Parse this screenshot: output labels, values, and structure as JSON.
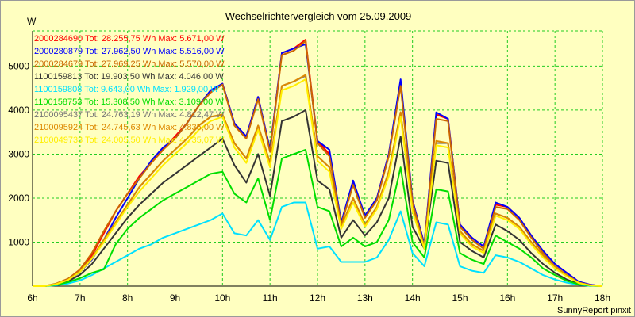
{
  "chart_data": {
    "type": "line",
    "title": "Wechselrichtervergleich vom 25.09.2009",
    "ylabel": "W",
    "footer": "SunnyReport pinxit",
    "grid": true,
    "legend_position": "top-left",
    "xlim": [
      6,
      18
    ],
    "ylim": [
      0,
      5800
    ],
    "x_ticks": [
      {
        "v": 6,
        "label": "6h"
      },
      {
        "v": 7,
        "label": "7h"
      },
      {
        "v": 8,
        "label": "8h"
      },
      {
        "v": 9,
        "label": "9h"
      },
      {
        "v": 10,
        "label": "10h"
      },
      {
        "v": 11,
        "label": "11h"
      },
      {
        "v": 12,
        "label": "12h"
      },
      {
        "v": 13,
        "label": "13h"
      },
      {
        "v": 14,
        "label": "14h"
      },
      {
        "v": 15,
        "label": "15h"
      },
      {
        "v": 16,
        "label": "16h"
      },
      {
        "v": 17,
        "label": "17h"
      },
      {
        "v": 18,
        "label": "18h"
      }
    ],
    "y_ticks": [
      {
        "v": 1000,
        "label": "1000"
      },
      {
        "v": 2000,
        "label": "2000"
      },
      {
        "v": 3000,
        "label": "3000"
      },
      {
        "v": 4000,
        "label": "4000"
      },
      {
        "v": 5000,
        "label": "5000"
      }
    ],
    "x": [
      6,
      6.25,
      6.5,
      6.75,
      7,
      7.25,
      7.5,
      7.75,
      8,
      8.25,
      8.5,
      8.75,
      9,
      9.25,
      9.5,
      9.75,
      10,
      10.25,
      10.5,
      10.75,
      11,
      11.25,
      11.5,
      11.75,
      12,
      12.25,
      12.5,
      12.75,
      13,
      13.25,
      13.5,
      13.75,
      14,
      14.25,
      14.5,
      14.75,
      15,
      15.25,
      15.5,
      15.75,
      16,
      16.25,
      16.5,
      16.75,
      17,
      17.25,
      17.5,
      17.75,
      18
    ],
    "series": [
      {
        "name": "2000284690",
        "legend": "2000284690 Tot: 28.255,75 Wh Max: 5.671,00 W",
        "color": "#ff0000",
        "values": [
          0,
          0,
          50,
          150,
          350,
          700,
          1200,
          1700,
          2100,
          2500,
          2800,
          3100,
          3400,
          3700,
          4100,
          4400,
          4600,
          3700,
          3400,
          4300,
          3100,
          5300,
          5400,
          5600,
          3300,
          3000,
          1450,
          2350,
          1600,
          2000,
          3000,
          4600,
          1950,
          950,
          3900,
          3800,
          1400,
          1100,
          900,
          1850,
          1800,
          1550,
          1150,
          800,
          500,
          300,
          100,
          30,
          0
        ]
      },
      {
        "name": "2000280879",
        "legend": "2000280879 Tot: 27.962,50 Wh Max: 5.516,00 W",
        "color": "#0000ff",
        "values": [
          0,
          0,
          40,
          130,
          320,
          600,
          1050,
          1550,
          2000,
          2450,
          2850,
          3150,
          3350,
          3700,
          4100,
          4450,
          4600,
          3700,
          3400,
          4300,
          3100,
          5300,
          5400,
          5500,
          3300,
          3100,
          1450,
          2400,
          1600,
          2000,
          3000,
          4700,
          1950,
          950,
          3950,
          3800,
          1400,
          1100,
          900,
          1900,
          1800,
          1550,
          1150,
          800,
          500,
          300,
          100,
          30,
          0
        ]
      },
      {
        "name": "2000284679",
        "legend": "2000284679 Tot: 27.969,25 Wh Max: 5.570,00 W",
        "color": "#cc6600",
        "values": [
          0,
          0,
          60,
          170,
          380,
          750,
          1250,
          1700,
          2100,
          2450,
          2800,
          3100,
          3350,
          3700,
          4100,
          4400,
          4580,
          3650,
          3350,
          4250,
          3050,
          5250,
          5350,
          5570,
          3250,
          2950,
          1400,
          2300,
          1550,
          1950,
          2950,
          4550,
          1900,
          900,
          3800,
          3750,
          1350,
          1050,
          850,
          1800,
          1750,
          1500,
          1100,
          750,
          450,
          250,
          80,
          20,
          0
        ]
      },
      {
        "name": "1100159813",
        "legend": "1100159813 Tot: 19.903,50 Wh Max: 4.046,00 W",
        "color": "#333333",
        "values": [
          0,
          0,
          40,
          110,
          260,
          500,
          850,
          1200,
          1550,
          1850,
          2100,
          2350,
          2550,
          2750,
          2950,
          3150,
          3350,
          2750,
          2350,
          3000,
          2050,
          3750,
          3850,
          4000,
          2400,
          2200,
          1100,
          1500,
          1150,
          1450,
          2000,
          3400,
          1350,
          850,
          2850,
          2800,
          1000,
          800,
          650,
          1400,
          1250,
          1050,
          750,
          500,
          300,
          150,
          50,
          10,
          0
        ]
      },
      {
        "name": "1100159808",
        "legend": "1100159808 Tot: 9.643,00 Wh Max: 1.929,00 W",
        "color": "#00e0ff",
        "values": [
          0,
          0,
          20,
          60,
          130,
          250,
          400,
          550,
          700,
          850,
          950,
          1100,
          1200,
          1300,
          1400,
          1500,
          1650,
          1200,
          1150,
          1500,
          1050,
          1800,
          1900,
          1900,
          850,
          900,
          550,
          550,
          550,
          650,
          1050,
          1700,
          750,
          450,
          1450,
          1400,
          450,
          350,
          300,
          700,
          650,
          550,
          400,
          250,
          150,
          80,
          30,
          5,
          0
        ]
      },
      {
        "name": "1100158753",
        "legend": "1100158753 Tot: 15.308,50 Wh Max: 3.109,00 W",
        "color": "#00dd00",
        "values": [
          0,
          0,
          30,
          90,
          180,
          300,
          380,
          950,
          1300,
          1550,
          1750,
          1950,
          2100,
          2250,
          2400,
          2550,
          2600,
          2100,
          1900,
          2450,
          1500,
          2900,
          3000,
          3100,
          1800,
          1700,
          900,
          1100,
          900,
          1000,
          1500,
          2700,
          1000,
          650,
          2200,
          2150,
          750,
          600,
          500,
          1150,
          1000,
          850,
          650,
          400,
          250,
          120,
          40,
          10,
          0
        ]
      },
      {
        "name": "2100095437",
        "legend": "2100095437 Tot: 24.763,19 Wh Max: 4.812,47 W",
        "color": "#777777",
        "values": [
          0,
          0,
          50,
          150,
          340,
          650,
          1050,
          1450,
          1850,
          2250,
          2550,
          2850,
          3100,
          3350,
          3650,
          3850,
          3880,
          3250,
          2900,
          3650,
          2800,
          4550,
          4650,
          4780,
          2950,
          2700,
          1350,
          2000,
          1400,
          1800,
          2600,
          3950,
          1750,
          900,
          3250,
          3250,
          1250,
          950,
          800,
          1650,
          1550,
          1350,
          1000,
          700,
          450,
          250,
          80,
          20,
          0
        ]
      },
      {
        "name": "2100095924",
        "legend": "2100095924 Tot: 24.745,63 Wh Max: 4.835,00 W",
        "color": "#dd8800",
        "values": [
          0,
          0,
          50,
          150,
          340,
          650,
          1050,
          1450,
          1850,
          2250,
          2550,
          2850,
          3100,
          3350,
          3650,
          3850,
          3900,
          3250,
          2900,
          3650,
          2800,
          4550,
          4650,
          4800,
          2950,
          2700,
          1350,
          2000,
          1400,
          1800,
          2600,
          3950,
          1750,
          900,
          3300,
          3250,
          1250,
          950,
          800,
          1650,
          1550,
          1350,
          1000,
          700,
          450,
          250,
          80,
          20,
          0
        ]
      },
      {
        "name": "2100049733",
        "legend": "2100049733 Tot: 24.005,50 Wh Max: 4.735,07 W",
        "color": "#ffee00",
        "values": [
          0,
          0,
          45,
          140,
          320,
          620,
          1000,
          1400,
          1800,
          2150,
          2450,
          2750,
          3000,
          3250,
          3550,
          3750,
          3850,
          3150,
          2800,
          3550,
          2700,
          4450,
          4550,
          4700,
          2850,
          2600,
          1300,
          1900,
          1350,
          1750,
          2500,
          3850,
          1700,
          850,
          3200,
          3150,
          1200,
          900,
          750,
          1600,
          1500,
          1300,
          950,
          650,
          400,
          220,
          70,
          15,
          0
        ]
      }
    ]
  }
}
